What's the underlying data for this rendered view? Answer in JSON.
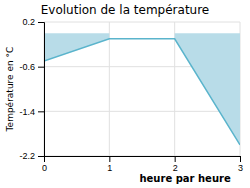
{
  "chart_data": {
    "type": "line",
    "title": "Evolution de la température",
    "y_label": "Température en °C",
    "annotation": "heure par heure",
    "x": [
      0,
      1,
      2,
      3
    ],
    "series": [
      {
        "type": "area",
        "color": "#b8dce8",
        "x": [
          0,
          1
        ],
        "values": [
          -0.5,
          -0.1
        ]
      },
      {
        "type": "area",
        "color": "#b8dce8",
        "x": [
          2,
          3
        ],
        "values": [
          -0.1,
          -2.0
        ]
      },
      {
        "type": "line",
        "color": "#5ab4cc",
        "values": [
          -0.5,
          -0.1,
          -0.1,
          -2.0
        ]
      }
    ],
    "baseline": 0.0,
    "xlim": [
      0,
      3
    ],
    "ylim": [
      -2.2,
      0.2
    ],
    "xticks": [
      0,
      1,
      2,
      3
    ],
    "yticks": [
      0.2,
      -0.6,
      -1.4,
      -2.2
    ],
    "grid": true
  }
}
